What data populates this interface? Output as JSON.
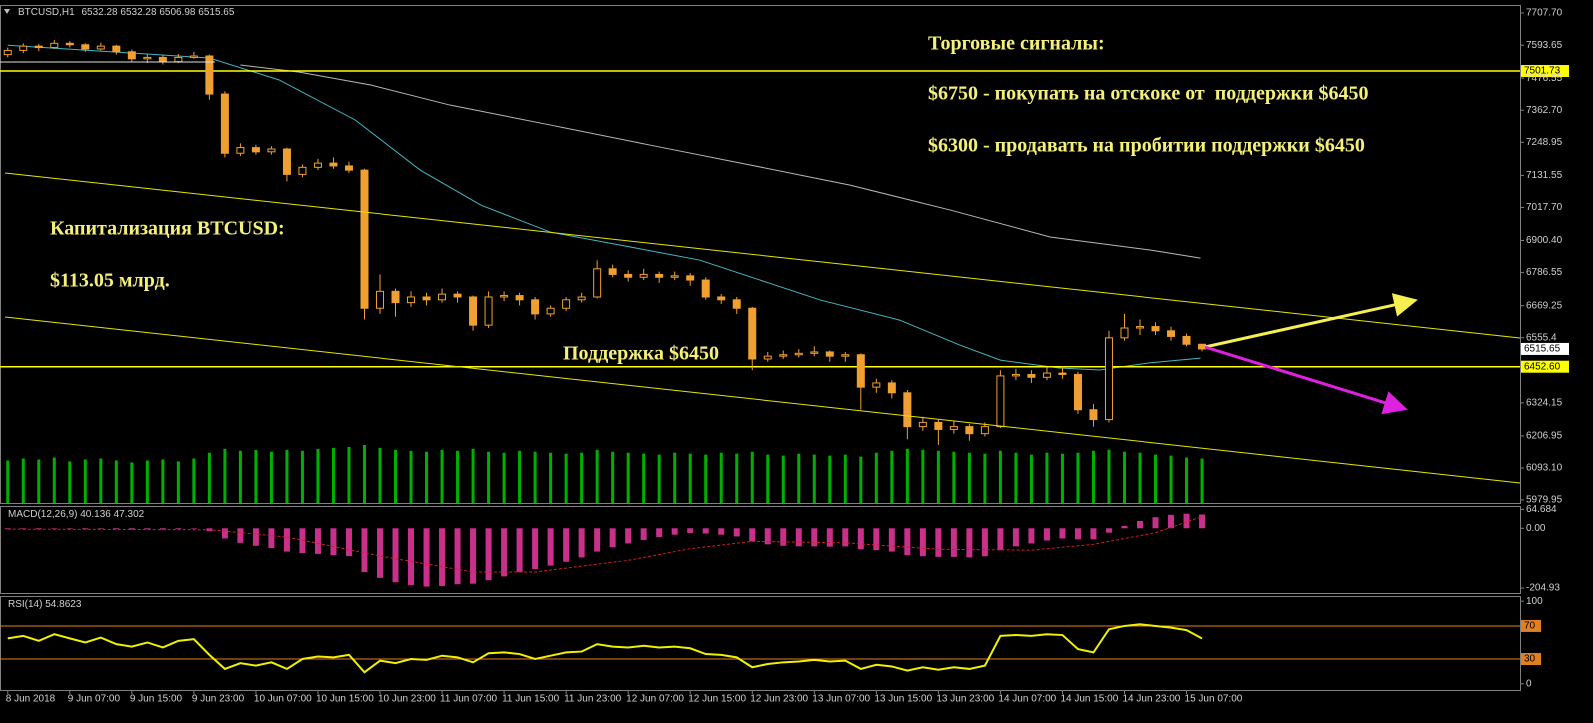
{
  "chart_data": [
    {
      "type": "candlestick",
      "symbol": "BTCUSD,H1",
      "color": "#f0a030",
      "up_fill": "#000000",
      "open": [
        7560,
        7575,
        7590,
        7585,
        7600,
        7595,
        7580,
        7590,
        7570,
        7545,
        7550,
        7535,
        7550,
        7555,
        7420,
        7210,
        7230,
        7215,
        7225,
        7135,
        7160,
        7175,
        7165,
        7150,
        6660,
        6720,
        6680,
        6700,
        6690,
        6710,
        6700,
        6600,
        6700,
        6705,
        6690,
        6640,
        6660,
        6690,
        6700,
        6800,
        6780,
        6770,
        6780,
        6770,
        6775,
        6760,
        6700,
        6690,
        6660,
        6480,
        6490,
        6495,
        6500,
        6505,
        6490,
        6495,
        6380,
        6395,
        6360,
        6240,
        6255,
        6230,
        6240,
        6215,
        6240,
        6420,
        6425,
        6415,
        6430,
        6425,
        6300,
        6265,
        6555,
        6590,
        6595,
        6580,
        6560,
        6532.28
      ],
      "high": [
        7585,
        7600,
        7598,
        7612,
        7608,
        7600,
        7602,
        7595,
        7578,
        7560,
        7558,
        7562,
        7570,
        7560,
        7430,
        7245,
        7240,
        7235,
        7230,
        7170,
        7190,
        7195,
        7180,
        7155,
        6780,
        6730,
        6720,
        6715,
        6730,
        6720,
        6705,
        6720,
        6720,
        6715,
        6700,
        6670,
        6700,
        6715,
        6830,
        6815,
        6795,
        6800,
        6790,
        6790,
        6785,
        6770,
        6710,
        6700,
        6665,
        6505,
        6510,
        6515,
        6525,
        6510,
        6505,
        6500,
        6410,
        6405,
        6370,
        6275,
        6265,
        6260,
        6250,
        6255,
        6440,
        6445,
        6440,
        6450,
        6455,
        6435,
        6320,
        6580,
        6640,
        6620,
        6610,
        6595,
        6570,
        6532.28
      ],
      "low": [
        7550,
        7565,
        7572,
        7580,
        7585,
        7570,
        7575,
        7560,
        7535,
        7530,
        7525,
        7530,
        7545,
        7400,
        7195,
        7200,
        7205,
        7205,
        7110,
        7125,
        7150,
        7155,
        7140,
        6620,
        6640,
        6630,
        6665,
        6670,
        6680,
        6680,
        6580,
        6590,
        6685,
        6670,
        6620,
        6630,
        6650,
        6680,
        6695,
        6770,
        6755,
        6760,
        6750,
        6760,
        6740,
        6690,
        6675,
        6640,
        6440,
        6470,
        6480,
        6485,
        6490,
        6470,
        6470,
        6300,
        6360,
        6340,
        6195,
        6225,
        6175,
        6215,
        6190,
        6205,
        6235,
        6405,
        6395,
        6405,
        6410,
        6285,
        6240,
        6255,
        6545,
        6565,
        6565,
        6545,
        6525,
        6506.98
      ],
      "close": [
        7575,
        7590,
        7585,
        7600,
        7595,
        7580,
        7590,
        7570,
        7545,
        7550,
        7535,
        7550,
        7555,
        7420,
        7210,
        7230,
        7215,
        7225,
        7135,
        7160,
        7175,
        7165,
        7150,
        6660,
        6720,
        6680,
        6700,
        6690,
        6710,
        6700,
        6600,
        6700,
        6705,
        6690,
        6640,
        6660,
        6690,
        6700,
        6800,
        6780,
        6770,
        6780,
        6770,
        6775,
        6760,
        6700,
        6690,
        6660,
        6480,
        6490,
        6495,
        6500,
        6505,
        6490,
        6495,
        6380,
        6395,
        6360,
        6240,
        6255,
        6230,
        6240,
        6215,
        6240,
        6420,
        6425,
        6415,
        6430,
        6425,
        6300,
        6265,
        6555,
        6590,
        6595,
        6580,
        6560,
        6532.28,
        6515.65
      ],
      "volume": {
        "color": "#00b000",
        "values": [
          44,
          46,
          45,
          47,
          43,
          45,
          46,
          44,
          42,
          44,
          45,
          43,
          46,
          52,
          56,
          54,
          55,
          53,
          55,
          54,
          56,
          57,
          58,
          60,
          57,
          55,
          54,
          53,
          55,
          54,
          56,
          53,
          52,
          54,
          53,
          52,
          51,
          52,
          55,
          53,
          52,
          51,
          50,
          52,
          51,
          50,
          52,
          51,
          53,
          50,
          49,
          51,
          50,
          49,
          50,
          48,
          52,
          54,
          56,
          55,
          54,
          53,
          52,
          51,
          54,
          52,
          50,
          52,
          51,
          52,
          54,
          55,
          53,
          52,
          50,
          49,
          47,
          46
        ]
      },
      "ma": [
        {
          "color": "#3fb8c8",
          "x": [
            0,
            13,
            17.5,
            22.4,
            26.6,
            30.5,
            35,
            39.5,
            44.6,
            48.5,
            52.4,
            57.5,
            61.4,
            64,
            67.8,
            70.4,
            73.6,
            76.9
          ],
          "values": [
            7593,
            7548,
            7470,
            7328,
            7150,
            7026,
            6930,
            6884,
            6831,
            6760,
            6689,
            6618,
            6529,
            6476,
            6448,
            6441,
            6466,
            6483
          ]
        },
        {
          "color": "#b8b8b8",
          "x": [
            15,
            18.8,
            23.4,
            28.5,
            35,
            41.4,
            47.9,
            54.3,
            60.8,
            67.2,
            73.6,
            76.9
          ],
          "values": [
            7523,
            7498,
            7452,
            7381,
            7310,
            7239,
            7168,
            7097,
            7008,
            6913,
            6867,
            6838
          ]
        }
      ],
      "hlines": [
        {
          "value": 7501.73,
          "color": "#ffff00"
        },
        {
          "value": {
            "value": 6452.6,
            "label": "6452.60"
          },
          "color": "#ffff00"
        }
      ],
      "xlim": [
        -0.5,
        97.5
      ],
      "xticks": [
        {
          "value": 0,
          "label": "8 Jun 2018"
        },
        {
          "value": 4,
          "label": "9 Jun 07:00"
        },
        {
          "value": 8,
          "label": "9 Jun 15:00"
        },
        {
          "value": 12,
          "label": "9 Jun 23:00"
        },
        {
          "value": 16,
          "label": "10 Jun 07:00"
        },
        {
          "value": 20,
          "label": "10 Jun 15:00"
        },
        {
          "value": 24,
          "label": "10 Jun 23:00"
        },
        {
          "value": 28,
          "label": "11 Jun 07:00"
        },
        {
          "value": 32,
          "label": "11 Jun 15:00"
        },
        {
          "value": 36,
          "label": "11 Jun 23:00"
        },
        {
          "value": 40,
          "label": "12 Jun 07:00"
        },
        {
          "value": 44,
          "label": "12 Jun 15:00"
        },
        {
          "value": 48,
          "label": "12 Jun 23:00"
        },
        {
          "value": 52,
          "label": "13 Jun 07:00"
        },
        {
          "value": 56,
          "label": "13 Jun 15:00"
        },
        {
          "value": 60,
          "label": "13 Jun 23:00"
        },
        {
          "value": 64,
          "label": "14 Jun 07:00"
        },
        {
          "value": 68,
          "label": "14 Jun 15:00"
        },
        {
          "value": 72,
          "label": "14 Jun 23:00"
        },
        {
          "value": 76,
          "label": "15 Jun 07:00"
        }
      ],
      "ylim": [
        5969,
        7736
      ],
      "yticks": [
        {
          "value": 7707.7,
          "label": "7707.70"
        },
        7593.65,
        7476.55,
        {
          "value": 7362.7,
          "label": "7362.70"
        },
        7248.95,
        7131.55,
        {
          "value": 7017.7,
          "label": "7017.70"
        },
        {
          "value": 6900.4,
          "label": "6900.40"
        },
        6786.55,
        6669.25,
        6555.4,
        6324.15,
        6206.95,
        {
          "value": 6093.1,
          "label": "6093.10"
        },
        5979.95
      ],
      "annotations": [
        "Торговые сигналы:",
        "$6750 - покупать на отскоке от  поддержки $6450",
        "$6300 - продавать на пробитии поддержки $6450",
        "Капитализация BTCUSD:",
        "$113.05 млрд.",
        "Поддержка $6450"
      ]
    },
    {
      "type": "macd",
      "title": "MACD(12,26,9)",
      "color": "#c8308c",
      "values": [
        -3,
        -2,
        -3,
        -2,
        -2,
        -3,
        -2,
        -3,
        -4,
        -3,
        -4,
        -3,
        -2,
        -10,
        -35,
        -50,
        -60,
        -68,
        -80,
        -85,
        -88,
        -92,
        -95,
        -150,
        -170,
        -185,
        -195,
        -200,
        -198,
        -192,
        -190,
        -178,
        -165,
        -150,
        -140,
        -128,
        -115,
        -100,
        -80,
        -65,
        -52,
        -40,
        -30,
        -22,
        -16,
        -18,
        -22,
        -28,
        -45,
        -55,
        -60,
        -62,
        -62,
        -63,
        -62,
        -72,
        -75,
        -80,
        -92,
        -96,
        -98,
        -98,
        -100,
        -96,
        -75,
        -62,
        -52,
        -42,
        -35,
        -38,
        -38,
        -15,
        8,
        25,
        38,
        46,
        50,
        47.302
      ],
      "signal": {
        "color": "#d02020",
        "x": [
          0,
          13,
          18,
          24,
          30,
          34,
          40,
          44,
          48,
          54,
          60,
          66,
          70,
          74,
          77
        ],
        "values": [
          -3,
          -5,
          -30,
          -95,
          -150,
          -150,
          -110,
          -70,
          -45,
          -50,
          -72,
          -75,
          -55,
          -15,
          40.136
        ]
      },
      "ylim": [
        -222,
        76.4
      ],
      "yticks": [
        64.684,
        {
          "value": 0,
          "label": "0.00"
        },
        -204.93
      ]
    },
    {
      "type": "line",
      "title": "RSI(14)",
      "color": "#f0f000",
      "values": [
        55,
        58,
        52,
        60,
        55,
        50,
        56,
        48,
        45,
        50,
        44,
        52,
        54,
        35,
        18,
        25,
        22,
        26,
        18,
        30,
        33,
        32,
        35,
        14,
        28,
        25,
        30,
        29,
        34,
        32,
        26,
        37,
        38,
        36,
        30,
        34,
        38,
        39,
        48,
        45,
        44,
        46,
        44,
        45,
        43,
        36,
        35,
        32,
        20,
        24,
        26,
        27,
        29,
        27,
        28,
        18,
        23,
        21,
        16,
        20,
        17,
        20,
        18,
        22,
        58,
        59,
        58,
        60,
        59,
        42,
        38,
        66,
        70,
        72,
        70,
        68,
        65,
        54.8623
      ],
      "ylim": [
        -7.5,
        106.25
      ],
      "yticks": [
        100,
        0
      ],
      "levels": [
        70,
        30
      ],
      "level_color": "#e08020"
    }
  ]
}
